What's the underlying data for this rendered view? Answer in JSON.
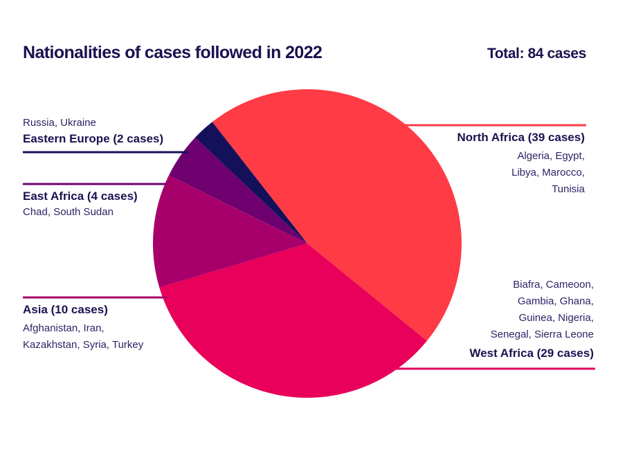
{
  "title": "Nationalities of cases followed in 2022",
  "total": "Total: 84 cases",
  "chart_data": {
    "type": "pie",
    "title": "Nationalities of cases followed in 2022",
    "total": 84,
    "slices": [
      {
        "name": "North Africa",
        "value": 39,
        "label": "North Africa (39 cases)",
        "countries": [
          "Algeria, Egypt,",
          "Libya, Marocco,",
          "Tunisia"
        ],
        "color": "#ff3b45"
      },
      {
        "name": "West Africa",
        "value": 29,
        "label": "West Africa (29 cases)",
        "countries": [
          "Biafra, Cameoon,",
          "Gambia, Ghana,",
          "Guinea, Nigeria,",
          "Senegal, Sierra Leone"
        ],
        "color": "#e8005a"
      },
      {
        "name": "Asia",
        "value": 10,
        "label": "Asia (10 cases)",
        "countries": [
          "Afghanistan, Iran,",
          "Kazakhstan, Syria, Turkey"
        ],
        "color": "#a8006a"
      },
      {
        "name": "East Africa",
        "value": 4,
        "label": "East Africa (4 cases)",
        "countries": [
          "Chad, South Sudan"
        ],
        "color": "#6e0070"
      },
      {
        "name": "Eastern Europe",
        "value": 2,
        "label": "Eastern Europe (2 cases)",
        "countries": [
          "Russia, Ukraine"
        ],
        "color": "#14105a"
      }
    ]
  }
}
